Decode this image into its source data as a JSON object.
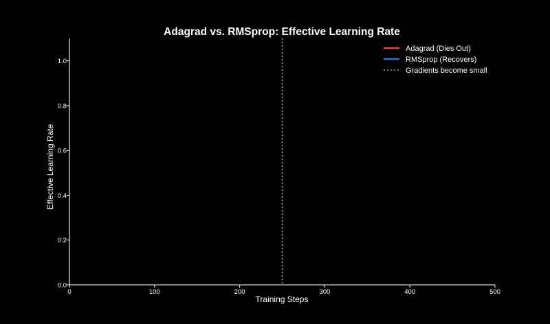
{
  "chart_data": {
    "type": "line",
    "title": "Adagrad vs. RMSprop: Effective Learning Rate",
    "xlabel": "Training Steps",
    "ylabel": "Effective Learning Rate",
    "xlim": [
      0,
      500
    ],
    "ylim": [
      0,
      1.1
    ],
    "x_ticks": [
      0,
      100,
      200,
      300,
      400,
      500
    ],
    "y_ticks": [
      0.0,
      0.2,
      0.4,
      0.6,
      0.8,
      1.0
    ],
    "x_tick_labels": [
      "0",
      "100",
      "200",
      "300",
      "400",
      "500"
    ],
    "y_tick_labels": [
      "0.0",
      "0.2",
      "0.4",
      "0.6",
      "0.8",
      "1.0"
    ],
    "grid": false,
    "legend_position": "top-right",
    "series": [
      {
        "name": "Adagrad (Dies Out)",
        "color": "#e8423a",
        "style": "solid",
        "x": [],
        "y": []
      },
      {
        "name": "RMSprop (Recovers)",
        "color": "#2f73d6",
        "style": "solid",
        "x": [],
        "y": []
      }
    ],
    "vertical_lines": [
      {
        "x": 250,
        "name": "Gradients become small",
        "color": "#aaaaaa",
        "style": "dotted"
      }
    ],
    "background_color": "#000000",
    "axis_color": "#ffffff"
  }
}
